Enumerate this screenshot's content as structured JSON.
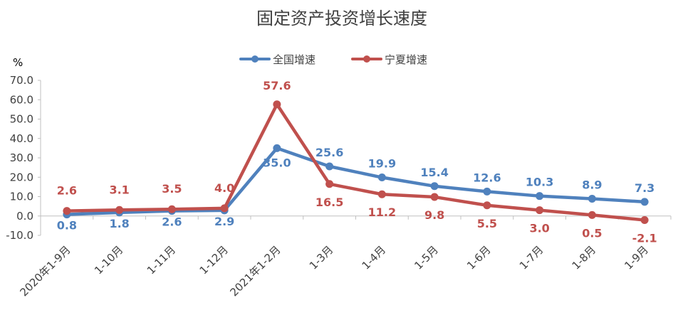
{
  "chart_data": {
    "type": "line",
    "title": "固定资产投资增长速度",
    "ylabel": "%",
    "xlabel": "",
    "categories": [
      "2020年1-9月",
      "1-10月",
      "1-11月",
      "1-12月",
      "2021年1-2月",
      "1-3月",
      "1-4月",
      "1-5月",
      "1-6月",
      "1-7月",
      "1-8月",
      "1-9月"
    ],
    "ylim": [
      -10,
      70
    ],
    "yticks": [
      "70.0",
      "60.0",
      "50.0",
      "40.0",
      "30.0",
      "20.0",
      "10.0",
      "0.0",
      "-10.0"
    ],
    "grid": false,
    "legend_position": "top-center",
    "series": [
      {
        "name": "全国增速",
        "color": "#4f81bd",
        "values": [
          0.8,
          1.8,
          2.6,
          2.9,
          35.0,
          25.6,
          19.9,
          15.4,
          12.6,
          10.3,
          8.9,
          7.3
        ],
        "labels": [
          "0.8",
          "1.8",
          "2.6",
          "2.9",
          "35.0",
          "25.6",
          "19.9",
          "15.4",
          "12.6",
          "10.3",
          "8.9",
          "7.3"
        ]
      },
      {
        "name": "宁夏增速",
        "color": "#c0504d",
        "values": [
          2.6,
          3.1,
          3.5,
          4.0,
          57.6,
          16.5,
          11.2,
          9.8,
          5.5,
          3.0,
          0.5,
          -2.1
        ],
        "labels": [
          "2.6",
          "3.1",
          "3.5",
          "4.0",
          "57.6",
          "16.5",
          "11.2",
          "9.8",
          "5.5",
          "3.0",
          "0.5",
          "-2.1"
        ]
      }
    ]
  }
}
